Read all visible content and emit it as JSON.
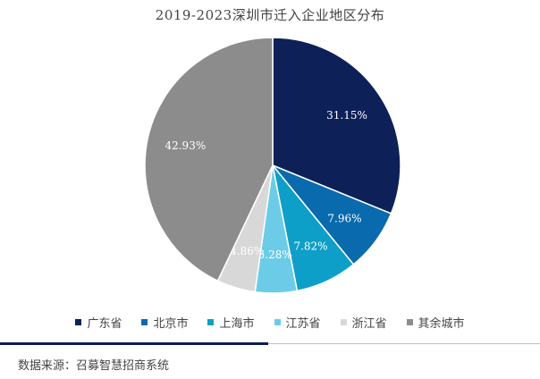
{
  "chart_data": {
    "type": "pie",
    "title": "2019-2023深圳市迁入企业地区分布",
    "categories": [
      "广东省",
      "北京市",
      "上海市",
      "江苏省",
      "浙江省",
      "其余城市"
    ],
    "values": [
      31.15,
      7.96,
      7.82,
      5.28,
      4.86,
      42.93
    ],
    "data_labels": [
      "31.15%",
      "7.96%",
      "7.82%",
      "5.28%",
      "4.86%",
      "42.93%"
    ],
    "colors": [
      "#0d2158",
      "#0a6aae",
      "#0e9fc8",
      "#6ccce8",
      "#d8d8d8",
      "#8c8c8c"
    ],
    "label_colors": [
      "#ffffff",
      "#ffffff",
      "#ffffff",
      "#ffffff",
      "#ffffff",
      "#ffffff"
    ],
    "start": "12 o'clock",
    "direction": "clockwise",
    "legend": "bottom"
  },
  "footer": {
    "source": "数据来源：召募智慧招商系统"
  }
}
